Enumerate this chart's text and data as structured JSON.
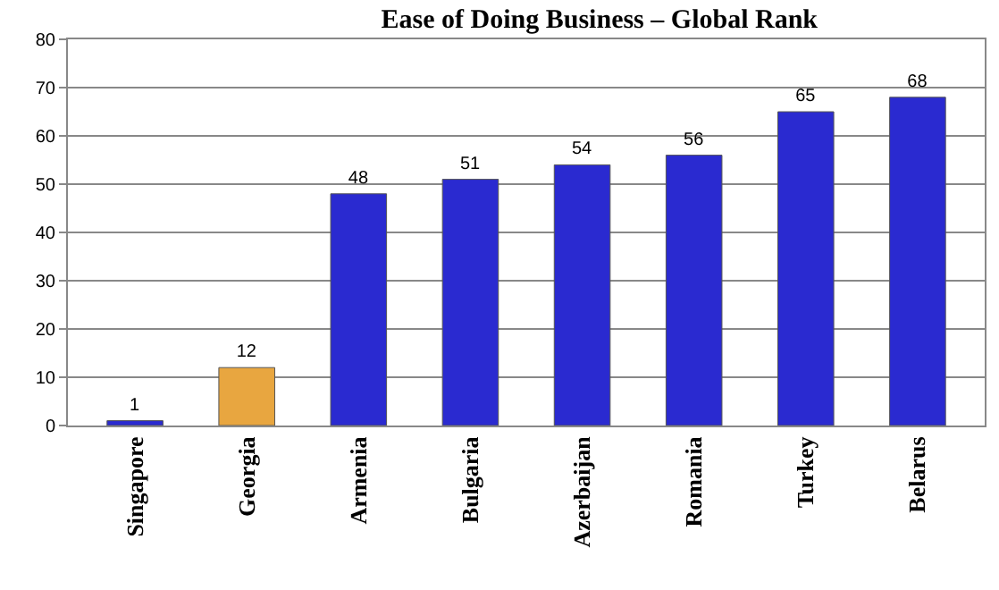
{
  "chart_data": {
    "type": "bar",
    "title": "Ease of Doing Business – Global Rank",
    "categories": [
      "Singapore",
      "Georgia",
      "Armenia",
      "Bulgaria",
      "Azerbaijan",
      "Romania",
      "Turkey",
      "Belarus"
    ],
    "values": [
      1,
      12,
      48,
      51,
      54,
      56,
      65,
      68
    ],
    "colors": [
      "#2a2ad0",
      "#e8a640",
      "#2a2ad0",
      "#2a2ad0",
      "#2a2ad0",
      "#2a2ad0",
      "#2a2ad0",
      "#2a2ad0"
    ],
    "ylim": [
      0,
      80
    ],
    "yticks": [
      0,
      10,
      20,
      30,
      40,
      50,
      60,
      70,
      80
    ],
    "grid": "y",
    "data_labels": true,
    "legend": false
  }
}
